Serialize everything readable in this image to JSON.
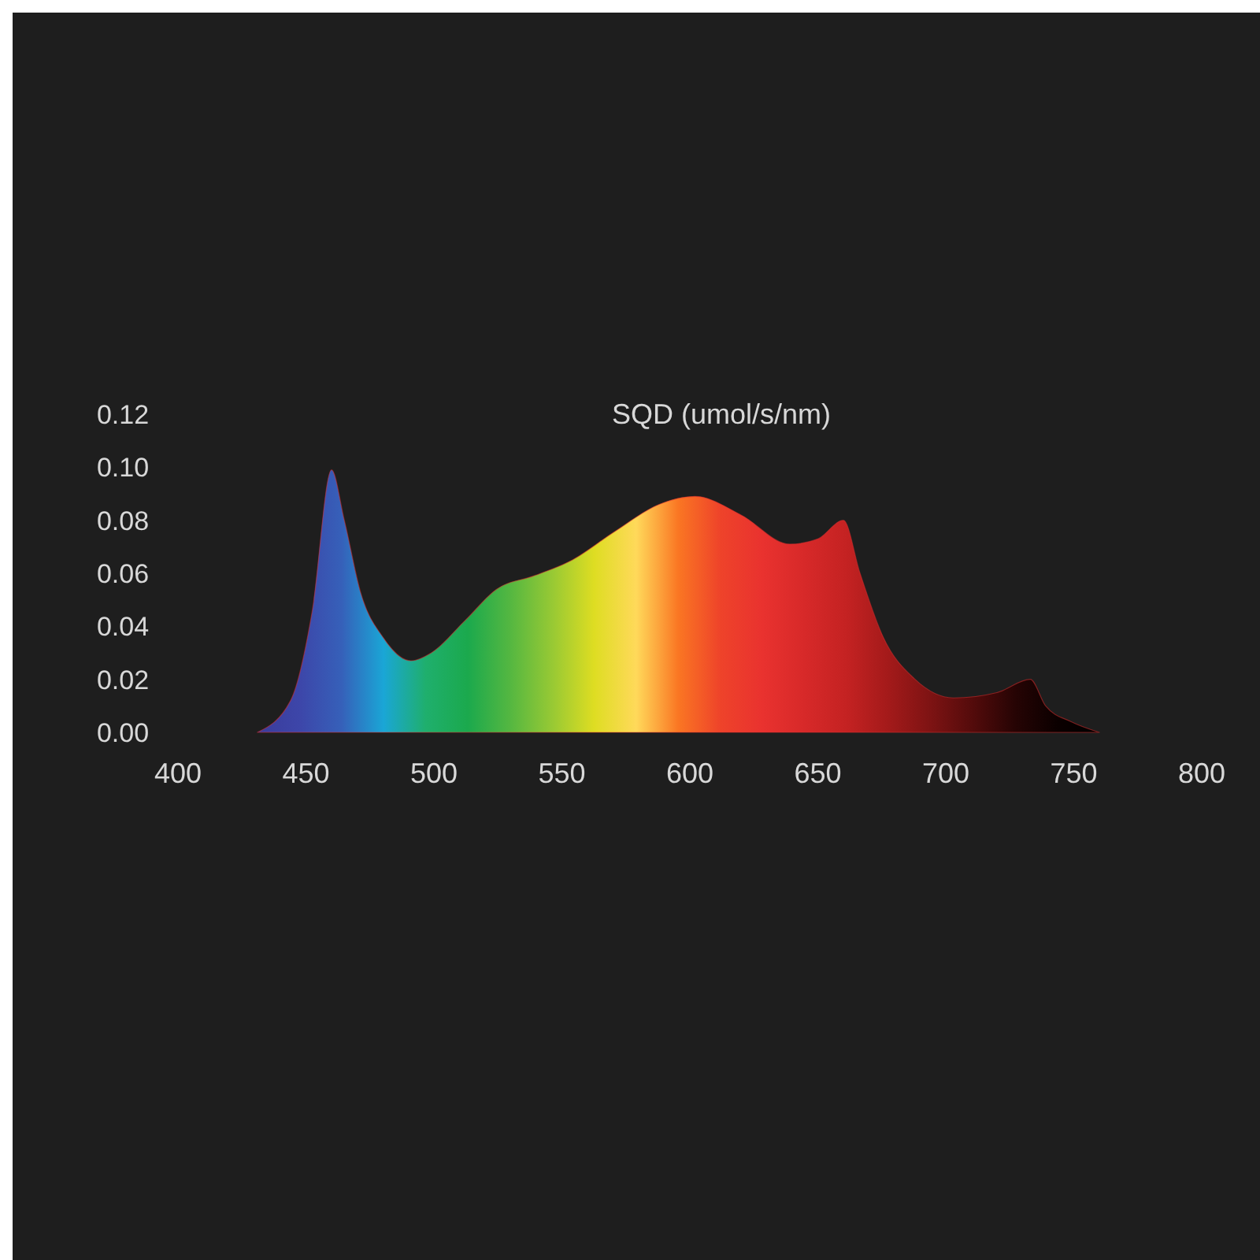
{
  "chart_data": {
    "type": "area",
    "title": "SQD (umol/s/nm)",
    "series": [
      {
        "color": "#e53030",
        "x": [
          431,
          444,
          452.5,
          460,
          465,
          471.6,
          480,
          491,
          499,
          512,
          524.5,
          539,
          554,
          571,
          588,
          602,
          620,
          639,
          650,
          660,
          666.5,
          675.5,
          688,
          703,
          720,
          733,
          739,
          749,
          760
        ],
        "values": [
          0,
          0.012,
          0.046,
          0.099,
          0.08,
          0.052,
          0.036,
          0.027,
          0.03,
          0.042,
          0.054,
          0.059,
          0.065,
          0.076,
          0.086,
          0.089,
          0.082,
          0.071,
          0.073,
          0.08,
          0.06,
          0.036,
          0.02,
          0.013,
          0.015,
          0.02,
          0.01,
          0.004,
          0
        ]
      }
    ],
    "xlim": [
      400,
      800
    ],
    "xticks": [
      400,
      450,
      500,
      550,
      600,
      650,
      700,
      750,
      800
    ],
    "ylim": [
      0,
      0.12
    ],
    "yticks": [
      {
        "value": 0,
        "label": "0.00"
      },
      {
        "value": 0.02,
        "label": "0.02"
      },
      {
        "value": 0.04,
        "label": "0.04"
      },
      {
        "value": 0.06,
        "label": "0.06"
      },
      {
        "value": 0.08,
        "label": "0.08"
      },
      {
        "value": 0.1,
        "label": "0.10"
      },
      {
        "value": 0.12,
        "label": "0.12"
      }
    ],
    "grid": false
  }
}
